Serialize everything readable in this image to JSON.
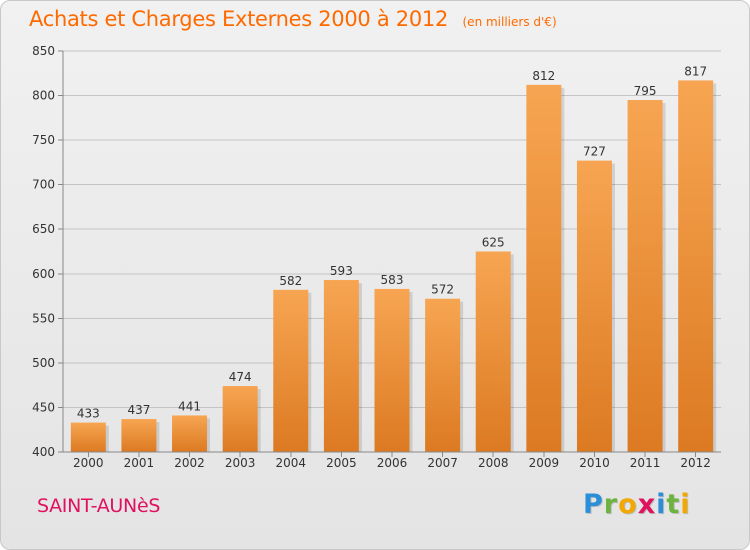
{
  "title": "Achats et Charges Externes 2000 à 2012",
  "subtitle": "(en milliers d'€)",
  "commune": "SAINT-AUNèS",
  "logo_text": "Proxiti",
  "colors": {
    "title": "#ff6a00",
    "commune": "#e0115f",
    "bar_top": "#f7a552",
    "bar_bottom": "#dc7a22"
  },
  "chart_data": {
    "type": "bar",
    "title": "Achats et Charges Externes 2000 à 2012",
    "subtitle": "(en milliers d'€)",
    "categories": [
      "2000",
      "2001",
      "2002",
      "2003",
      "2004",
      "2005",
      "2006",
      "2007",
      "2008",
      "2009",
      "2010",
      "2011",
      "2012"
    ],
    "values": [
      433,
      437,
      441,
      474,
      582,
      593,
      583,
      572,
      625,
      812,
      727,
      795,
      817
    ],
    "ylim": [
      400,
      850
    ],
    "yticks": [
      400,
      450,
      500,
      550,
      600,
      650,
      700,
      750,
      800,
      850
    ],
    "grid": true,
    "data_labels": true
  }
}
